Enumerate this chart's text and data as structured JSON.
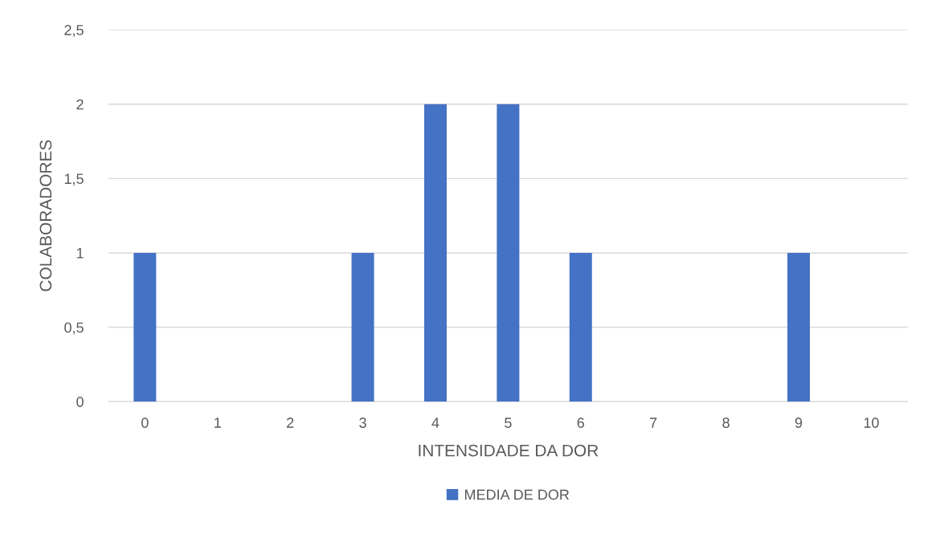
{
  "chart_data": {
    "type": "bar",
    "xlabel": "INTENSIDADE DA DOR",
    "ylabel": "COLABORADORES",
    "categories": [
      "0",
      "1",
      "2",
      "3",
      "4",
      "5",
      "6",
      "7",
      "8",
      "9",
      "10"
    ],
    "series": [
      {
        "name": "MEDIA DE DOR",
        "color": "#4472c4",
        "values": [
          1,
          0,
          0,
          1,
          2,
          2,
          1,
          0,
          0,
          1,
          0
        ]
      }
    ],
    "ylim": [
      0,
      2.5
    ],
    "yticks": [
      0,
      {
        "value": 0.5,
        "label": "0,5"
      },
      1,
      {
        "value": 1.5,
        "label": "1,5"
      },
      2,
      {
        "value": 2.5,
        "label": "2,5"
      }
    ],
    "grid": "y",
    "legend": "bottom"
  }
}
